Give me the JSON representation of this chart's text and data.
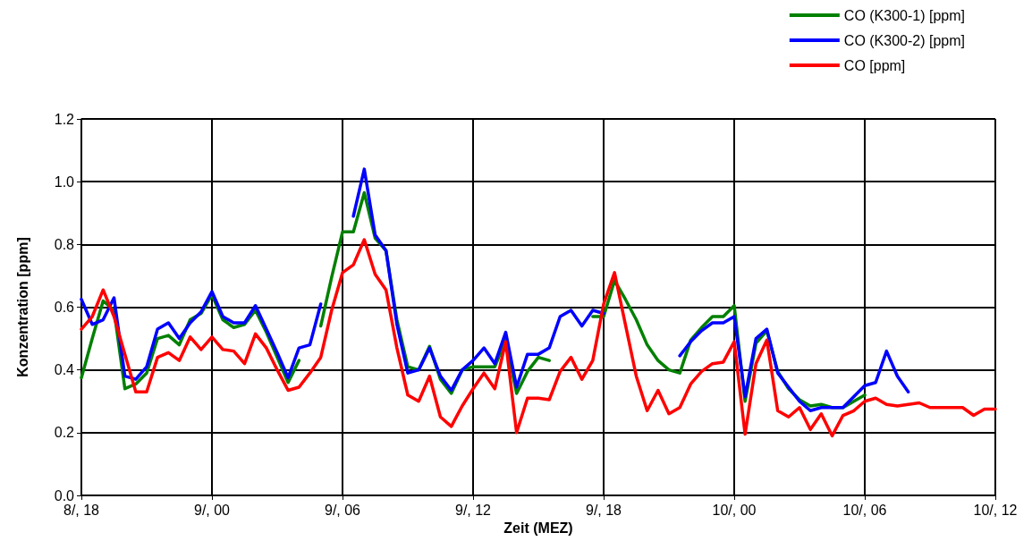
{
  "chart_data": {
    "type": "line",
    "xlabel": "Zeit (MEZ)",
    "ylabel": "Konzentration [ppm]",
    "categories": [
      "8/, 18",
      null,
      null,
      null,
      null,
      null,
      null,
      null,
      null,
      null,
      null,
      null,
      "9/, 00",
      null,
      null,
      null,
      null,
      null,
      null,
      null,
      null,
      null,
      null,
      null,
      "9/, 06",
      null,
      null,
      null,
      null,
      null,
      null,
      null,
      null,
      null,
      null,
      null,
      "9/, 12",
      null,
      null,
      null,
      null,
      null,
      null,
      null,
      null,
      null,
      null,
      null,
      "9/, 18",
      null,
      null,
      null,
      null,
      null,
      null,
      null,
      null,
      null,
      null,
      null,
      "10/, 00",
      null,
      null,
      null,
      null,
      null,
      null,
      null,
      null,
      null,
      null,
      null,
      "10/, 06",
      null,
      null,
      null,
      null,
      null,
      null,
      null,
      null,
      null,
      null,
      null,
      "10/, 12"
    ],
    "series": [
      {
        "name": "CO (K300-1) [ppm]",
        "color": "#008000",
        "values": [
          0.375,
          0.5,
          0.62,
          0.59,
          0.34,
          0.355,
          0.39,
          0.5,
          0.51,
          0.48,
          0.56,
          0.58,
          0.64,
          0.56,
          0.535,
          0.545,
          0.59,
          0.52,
          0.44,
          0.36,
          0.43,
          null,
          0.54,
          0.695,
          0.84,
          0.84,
          0.965,
          0.82,
          0.78,
          0.56,
          0.41,
          0.4,
          0.475,
          0.37,
          0.325,
          0.4,
          0.41,
          0.41,
          0.41,
          0.495,
          0.325,
          0.395,
          0.44,
          0.43,
          null,
          null,
          null,
          0.57,
          0.57,
          0.685,
          0.625,
          0.56,
          0.48,
          0.43,
          0.4,
          0.39,
          0.495,
          0.535,
          0.57,
          0.57,
          0.605,
          0.3,
          0.485,
          0.525,
          0.395,
          0.34,
          0.305,
          0.285,
          0.29,
          0.28,
          0.28,
          0.3,
          0.32,
          null,
          null,
          null,
          null,
          null,
          null,
          null,
          null,
          null,
          null,
          null,
          null
        ]
      },
      {
        "name": "CO (K300-2) [ppm]",
        "color": "#0000ff",
        "values": [
          0.625,
          0.545,
          0.56,
          0.63,
          0.38,
          0.37,
          0.41,
          0.53,
          0.55,
          0.5,
          0.55,
          0.585,
          0.65,
          0.57,
          0.55,
          0.55,
          0.605,
          0.53,
          0.455,
          0.375,
          0.47,
          0.48,
          0.61,
          null,
          null,
          0.89,
          1.04,
          0.83,
          0.78,
          0.545,
          0.39,
          0.4,
          0.47,
          0.38,
          0.335,
          0.4,
          0.43,
          0.47,
          0.42,
          0.52,
          0.345,
          0.45,
          0.45,
          0.47,
          0.57,
          0.59,
          0.54,
          0.59,
          0.58,
          null,
          null,
          null,
          null,
          null,
          null,
          0.445,
          0.49,
          0.525,
          0.55,
          0.55,
          0.57,
          0.315,
          0.5,
          0.53,
          0.39,
          0.345,
          0.3,
          0.27,
          0.28,
          0.28,
          0.28,
          0.315,
          0.35,
          0.36,
          0.46,
          0.38,
          0.33,
          null,
          null,
          null,
          null,
          null,
          null,
          null,
          null
        ]
      },
      {
        "name": "CO [ppm]",
        "color": "#ff0000",
        "values": [
          0.53,
          0.57,
          0.655,
          0.57,
          0.45,
          0.33,
          0.33,
          0.44,
          0.455,
          0.43,
          0.505,
          0.465,
          0.505,
          0.465,
          0.46,
          0.42,
          0.515,
          0.47,
          0.4,
          0.335,
          0.345,
          0.39,
          0.44,
          0.59,
          0.71,
          0.735,
          0.815,
          0.705,
          0.655,
          0.47,
          0.32,
          0.3,
          0.38,
          0.25,
          0.22,
          0.285,
          0.34,
          0.39,
          0.34,
          0.49,
          0.2,
          0.31,
          0.31,
          0.305,
          0.395,
          0.44,
          0.37,
          0.43,
          0.61,
          0.71,
          0.545,
          0.38,
          0.27,
          0.335,
          0.26,
          0.28,
          0.355,
          0.395,
          0.42,
          0.425,
          0.49,
          0.195,
          0.42,
          0.495,
          0.27,
          0.25,
          0.28,
          0.21,
          0.26,
          0.19,
          0.255,
          0.27,
          0.3,
          0.31,
          0.29,
          0.285,
          0.29,
          0.295,
          0.28,
          0.28,
          0.28,
          0.28,
          0.255,
          0.275,
          0.275
        ]
      }
    ],
    "ylim": [
      0,
      1.2
    ],
    "yticks": [
      {
        "value": 0,
        "label": "0.0"
      },
      {
        "value": 0.2,
        "label": "0.2"
      },
      {
        "value": 0.4,
        "label": "0.4"
      },
      {
        "value": 0.6,
        "label": "0.6"
      },
      {
        "value": 0.8,
        "label": "0.8"
      },
      {
        "value": 1,
        "label": "1.0"
      },
      {
        "value": 1.2,
        "label": "1.2"
      }
    ],
    "grid": true,
    "legend": "top right",
    "marker": "none",
    "line_style": "solid"
  }
}
